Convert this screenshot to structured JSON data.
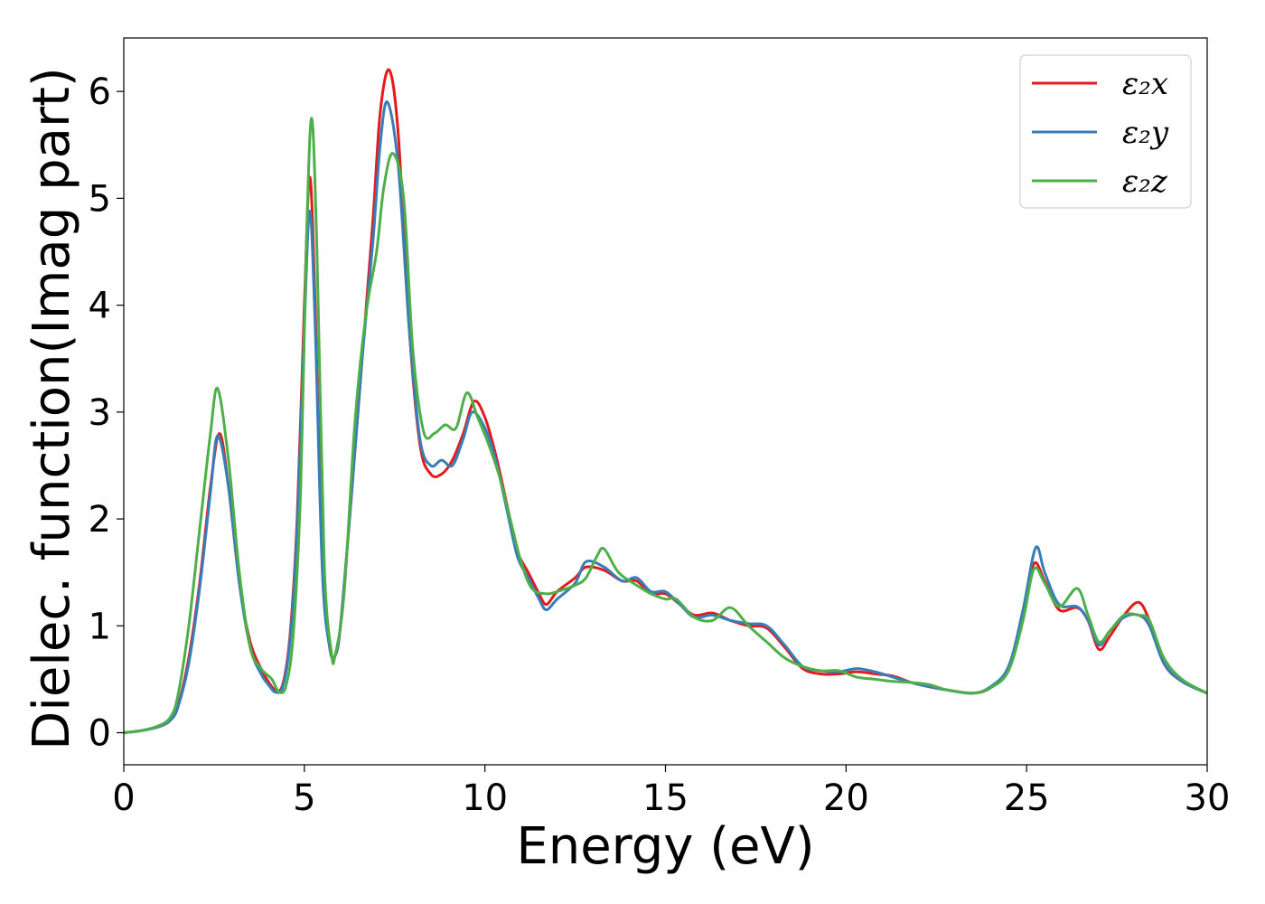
{
  "chart_data": {
    "type": "line",
    "title": "",
    "xlabel": "Energy (eV)",
    "ylabel": "Dielec. function(Imag part)",
    "xlim": [
      0,
      30
    ],
    "ylim": [
      -0.3,
      6.5
    ],
    "xticks": [
      0,
      5,
      10,
      15,
      20,
      25,
      30
    ],
    "yticks": [
      0,
      1,
      2,
      3,
      4,
      5,
      6
    ],
    "grid": false,
    "legend_position": "top-right",
    "series": [
      {
        "name": "ε₂x",
        "color": "#e41a1c",
        "points": [
          [
            0,
            0
          ],
          [
            0.5,
            0.02
          ],
          [
            1.0,
            0.06
          ],
          [
            1.3,
            0.12
          ],
          [
            1.5,
            0.25
          ],
          [
            1.8,
            0.7
          ],
          [
            2.1,
            1.4
          ],
          [
            2.4,
            2.3
          ],
          [
            2.65,
            2.8
          ],
          [
            2.9,
            2.3
          ],
          [
            3.2,
            1.4
          ],
          [
            3.5,
            0.85
          ],
          [
            3.8,
            0.6
          ],
          [
            4.0,
            0.48
          ],
          [
            4.2,
            0.4
          ],
          [
            4.4,
            0.45
          ],
          [
            4.6,
            0.9
          ],
          [
            4.8,
            2.0
          ],
          [
            5.0,
            4.0
          ],
          [
            5.15,
            5.2
          ],
          [
            5.3,
            4.0
          ],
          [
            5.5,
            1.6
          ],
          [
            5.7,
            0.8
          ],
          [
            5.85,
            0.72
          ],
          [
            6.0,
            1.0
          ],
          [
            6.3,
            2.2
          ],
          [
            6.6,
            3.5
          ],
          [
            6.9,
            4.8
          ],
          [
            7.1,
            5.8
          ],
          [
            7.35,
            6.2
          ],
          [
            7.6,
            5.6
          ],
          [
            7.9,
            3.8
          ],
          [
            8.2,
            2.7
          ],
          [
            8.5,
            2.42
          ],
          [
            8.8,
            2.42
          ],
          [
            9.1,
            2.55
          ],
          [
            9.4,
            2.8
          ],
          [
            9.7,
            3.1
          ],
          [
            10.0,
            2.95
          ],
          [
            10.3,
            2.6
          ],
          [
            10.6,
            2.15
          ],
          [
            10.9,
            1.7
          ],
          [
            11.2,
            1.5
          ],
          [
            11.5,
            1.3
          ],
          [
            11.7,
            1.2
          ],
          [
            12.0,
            1.32
          ],
          [
            12.5,
            1.45
          ],
          [
            12.8,
            1.55
          ],
          [
            13.3,
            1.52
          ],
          [
            13.8,
            1.42
          ],
          [
            14.2,
            1.42
          ],
          [
            14.6,
            1.3
          ],
          [
            15.0,
            1.3
          ],
          [
            15.4,
            1.2
          ],
          [
            15.8,
            1.1
          ],
          [
            16.3,
            1.12
          ],
          [
            16.8,
            1.05
          ],
          [
            17.3,
            1.0
          ],
          [
            17.8,
            0.98
          ],
          [
            18.3,
            0.8
          ],
          [
            18.8,
            0.6
          ],
          [
            19.3,
            0.55
          ],
          [
            19.8,
            0.55
          ],
          [
            20.3,
            0.57
          ],
          [
            20.8,
            0.55
          ],
          [
            21.3,
            0.53
          ],
          [
            21.8,
            0.47
          ],
          [
            22.3,
            0.43
          ],
          [
            22.8,
            0.4
          ],
          [
            23.5,
            0.37
          ],
          [
            24.0,
            0.42
          ],
          [
            24.5,
            0.6
          ],
          [
            24.9,
            1.1
          ],
          [
            25.2,
            1.58
          ],
          [
            25.5,
            1.42
          ],
          [
            25.9,
            1.15
          ],
          [
            26.4,
            1.17
          ],
          [
            26.7,
            1.05
          ],
          [
            27.0,
            0.78
          ],
          [
            27.3,
            0.9
          ],
          [
            27.7,
            1.1
          ],
          [
            28.1,
            1.22
          ],
          [
            28.4,
            1.05
          ],
          [
            28.8,
            0.65
          ],
          [
            29.3,
            0.48
          ],
          [
            30.0,
            0.37
          ]
        ]
      },
      {
        "name": "ε₂y",
        "color": "#377eb8",
        "points": [
          [
            0,
            0
          ],
          [
            0.5,
            0.02
          ],
          [
            1.0,
            0.06
          ],
          [
            1.3,
            0.12
          ],
          [
            1.5,
            0.24
          ],
          [
            1.8,
            0.65
          ],
          [
            2.1,
            1.35
          ],
          [
            2.4,
            2.25
          ],
          [
            2.6,
            2.78
          ],
          [
            2.9,
            2.3
          ],
          [
            3.2,
            1.4
          ],
          [
            3.5,
            0.8
          ],
          [
            3.8,
            0.55
          ],
          [
            4.0,
            0.45
          ],
          [
            4.2,
            0.38
          ],
          [
            4.4,
            0.43
          ],
          [
            4.6,
            0.85
          ],
          [
            4.8,
            1.9
          ],
          [
            5.0,
            3.8
          ],
          [
            5.15,
            4.88
          ],
          [
            5.3,
            3.8
          ],
          [
            5.5,
            1.5
          ],
          [
            5.7,
            0.8
          ],
          [
            5.85,
            0.72
          ],
          [
            6.0,
            1.0
          ],
          [
            6.3,
            2.2
          ],
          [
            6.6,
            3.5
          ],
          [
            6.9,
            4.6
          ],
          [
            7.1,
            5.5
          ],
          [
            7.3,
            5.9
          ],
          [
            7.6,
            5.3
          ],
          [
            7.9,
            3.8
          ],
          [
            8.2,
            2.75
          ],
          [
            8.5,
            2.5
          ],
          [
            8.8,
            2.55
          ],
          [
            9.1,
            2.5
          ],
          [
            9.4,
            2.75
          ],
          [
            9.65,
            3.0
          ],
          [
            10.0,
            2.85
          ],
          [
            10.3,
            2.55
          ],
          [
            10.6,
            2.1
          ],
          [
            10.9,
            1.65
          ],
          [
            11.2,
            1.45
          ],
          [
            11.5,
            1.25
          ],
          [
            11.7,
            1.15
          ],
          [
            12.0,
            1.25
          ],
          [
            12.5,
            1.4
          ],
          [
            12.8,
            1.6
          ],
          [
            13.3,
            1.55
          ],
          [
            13.8,
            1.42
          ],
          [
            14.2,
            1.45
          ],
          [
            14.6,
            1.32
          ],
          [
            15.0,
            1.32
          ],
          [
            15.4,
            1.2
          ],
          [
            15.8,
            1.08
          ],
          [
            16.3,
            1.1
          ],
          [
            16.8,
            1.05
          ],
          [
            17.3,
            1.02
          ],
          [
            17.8,
            1.0
          ],
          [
            18.3,
            0.82
          ],
          [
            18.8,
            0.62
          ],
          [
            19.3,
            0.58
          ],
          [
            19.8,
            0.57
          ],
          [
            20.3,
            0.6
          ],
          [
            20.8,
            0.57
          ],
          [
            21.3,
            0.52
          ],
          [
            21.8,
            0.47
          ],
          [
            22.3,
            0.43
          ],
          [
            22.8,
            0.4
          ],
          [
            23.5,
            0.37
          ],
          [
            24.0,
            0.43
          ],
          [
            24.5,
            0.62
          ],
          [
            24.9,
            1.15
          ],
          [
            25.25,
            1.73
          ],
          [
            25.5,
            1.5
          ],
          [
            25.9,
            1.2
          ],
          [
            26.4,
            1.18
          ],
          [
            26.7,
            1.05
          ],
          [
            27.0,
            0.82
          ],
          [
            27.3,
            0.95
          ],
          [
            27.7,
            1.08
          ],
          [
            28.1,
            1.1
          ],
          [
            28.4,
            1.0
          ],
          [
            28.8,
            0.65
          ],
          [
            29.3,
            0.48
          ],
          [
            30.0,
            0.37
          ]
        ]
      },
      {
        "name": "ε₂z",
        "color": "#4daf4a",
        "points": [
          [
            0,
            0
          ],
          [
            0.5,
            0.02
          ],
          [
            1.0,
            0.07
          ],
          [
            1.3,
            0.15
          ],
          [
            1.5,
            0.35
          ],
          [
            1.8,
            1.0
          ],
          [
            2.1,
            1.9
          ],
          [
            2.4,
            2.8
          ],
          [
            2.6,
            3.22
          ],
          [
            2.9,
            2.55
          ],
          [
            3.2,
            1.5
          ],
          [
            3.5,
            0.8
          ],
          [
            3.8,
            0.6
          ],
          [
            4.1,
            0.5
          ],
          [
            4.3,
            0.38
          ],
          [
            4.5,
            0.45
          ],
          [
            4.7,
            0.95
          ],
          [
            4.9,
            2.3
          ],
          [
            5.05,
            4.5
          ],
          [
            5.2,
            5.75
          ],
          [
            5.35,
            4.5
          ],
          [
            5.55,
            1.6
          ],
          [
            5.75,
            0.75
          ],
          [
            5.85,
            0.72
          ],
          [
            6.1,
            1.3
          ],
          [
            6.4,
            2.9
          ],
          [
            6.7,
            3.9
          ],
          [
            7.0,
            4.5
          ],
          [
            7.2,
            5.1
          ],
          [
            7.45,
            5.42
          ],
          [
            7.75,
            5.0
          ],
          [
            8.0,
            3.6
          ],
          [
            8.3,
            2.82
          ],
          [
            8.6,
            2.8
          ],
          [
            8.9,
            2.88
          ],
          [
            9.2,
            2.85
          ],
          [
            9.5,
            3.18
          ],
          [
            9.8,
            2.95
          ],
          [
            10.1,
            2.7
          ],
          [
            10.4,
            2.4
          ],
          [
            10.7,
            2.0
          ],
          [
            11.0,
            1.6
          ],
          [
            11.3,
            1.35
          ],
          [
            11.7,
            1.3
          ],
          [
            12.0,
            1.32
          ],
          [
            12.5,
            1.38
          ],
          [
            12.8,
            1.45
          ],
          [
            13.1,
            1.65
          ],
          [
            13.3,
            1.72
          ],
          [
            13.7,
            1.5
          ],
          [
            14.2,
            1.38
          ],
          [
            14.6,
            1.3
          ],
          [
            15.0,
            1.25
          ],
          [
            15.3,
            1.25
          ],
          [
            15.8,
            1.08
          ],
          [
            16.3,
            1.05
          ],
          [
            16.8,
            1.17
          ],
          [
            17.3,
            1.0
          ],
          [
            17.8,
            0.85
          ],
          [
            18.3,
            0.7
          ],
          [
            18.8,
            0.62
          ],
          [
            19.3,
            0.58
          ],
          [
            19.8,
            0.58
          ],
          [
            20.3,
            0.52
          ],
          [
            20.8,
            0.5
          ],
          [
            21.3,
            0.48
          ],
          [
            21.8,
            0.47
          ],
          [
            22.3,
            0.45
          ],
          [
            22.8,
            0.4
          ],
          [
            23.5,
            0.37
          ],
          [
            24.0,
            0.42
          ],
          [
            24.5,
            0.58
          ],
          [
            24.9,
            1.05
          ],
          [
            25.2,
            1.53
          ],
          [
            25.5,
            1.4
          ],
          [
            25.9,
            1.18
          ],
          [
            26.4,
            1.35
          ],
          [
            26.7,
            1.1
          ],
          [
            27.0,
            0.85
          ],
          [
            27.3,
            0.95
          ],
          [
            27.7,
            1.1
          ],
          [
            28.1,
            1.1
          ],
          [
            28.4,
            1.05
          ],
          [
            28.8,
            0.7
          ],
          [
            29.3,
            0.5
          ],
          [
            30.0,
            0.37
          ]
        ]
      }
    ]
  }
}
